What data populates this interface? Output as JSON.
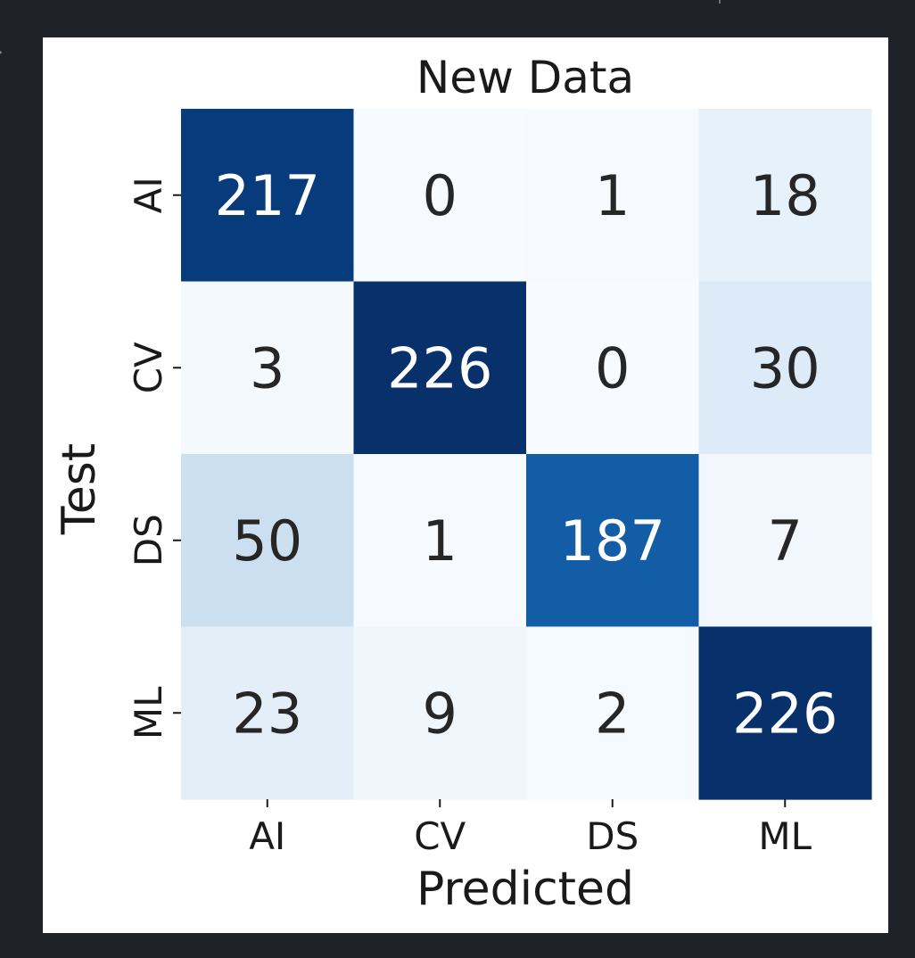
{
  "chart_data": {
    "type": "heatmap",
    "title": "New Data",
    "xlabel": "Predicted",
    "ylabel": "Test",
    "x_categories": [
      "AI",
      "CV",
      "DS",
      "ML"
    ],
    "y_categories": [
      "AI",
      "CV",
      "DS",
      "ML"
    ],
    "matrix": [
      [
        217,
        0,
        1,
        18
      ],
      [
        3,
        226,
        0,
        30
      ],
      [
        50,
        1,
        187,
        7
      ],
      [
        23,
        9,
        2,
        226
      ]
    ],
    "colormap": "Blues",
    "colorbar": false,
    "grid": false
  },
  "ui": {
    "edge_glyph": "›"
  }
}
